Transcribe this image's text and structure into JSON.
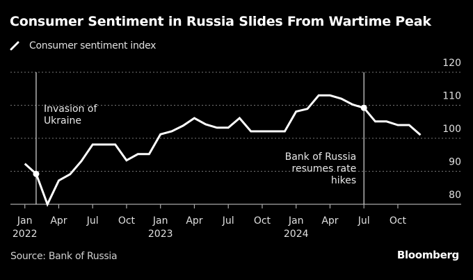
{
  "header": {
    "title": "Consumer Sentiment in Russia Slides From Wartime Peak",
    "legend_label": "Consumer sentiment index"
  },
  "footer": {
    "source": "Source: Bank of Russia",
    "brand": "Bloomberg"
  },
  "colors": {
    "background": "#000000",
    "line": "#ffffff",
    "grid": "#666666",
    "text": "#e0e0e0"
  },
  "chart_data": {
    "type": "line",
    "title": "Consumer Sentiment in Russia Slides From Wartime Peak",
    "xlabel": "",
    "ylabel": "",
    "ylim": [
      80,
      120
    ],
    "yticks": [
      80,
      90,
      100,
      110,
      120
    ],
    "y_axis_side": "right",
    "grid": true,
    "legend": "top-left",
    "x_start": "2022-01",
    "x_end_axis": "2025-06",
    "xticks": [
      {
        "month_index": 0,
        "label": "Jan",
        "year": "2022"
      },
      {
        "month_index": 3,
        "label": "Apr",
        "year": ""
      },
      {
        "month_index": 6,
        "label": "Jul",
        "year": ""
      },
      {
        "month_index": 9,
        "label": "Oct",
        "year": ""
      },
      {
        "month_index": 12,
        "label": "Jan",
        "year": "2023"
      },
      {
        "month_index": 15,
        "label": "Apr",
        "year": ""
      },
      {
        "month_index": 18,
        "label": "Jul",
        "year": ""
      },
      {
        "month_index": 21,
        "label": "Oct",
        "year": ""
      },
      {
        "month_index": 24,
        "label": "Jan",
        "year": "2024"
      },
      {
        "month_index": 27,
        "label": "Apr",
        "year": ""
      },
      {
        "month_index": 30,
        "label": "Jul",
        "year": ""
      },
      {
        "month_index": 33,
        "label": "Oct",
        "year": ""
      }
    ],
    "series": [
      {
        "name": "Consumer sentiment index",
        "x": [
          "2022-01",
          "2022-02",
          "2022-03",
          "2022-04",
          "2022-05",
          "2022-06",
          "2022-07",
          "2022-08",
          "2022-09",
          "2022-10",
          "2022-11",
          "2022-12",
          "2023-01",
          "2023-02",
          "2023-03",
          "2023-04",
          "2023-05",
          "2023-06",
          "2023-07",
          "2023-08",
          "2023-09",
          "2023-10",
          "2023-11",
          "2023-12",
          "2024-01",
          "2024-02",
          "2024-03",
          "2024-04",
          "2024-05",
          "2024-06",
          "2024-07",
          "2024-08",
          "2024-09",
          "2024-10",
          "2024-11",
          "2024-12"
        ],
        "values": [
          92.3,
          89.2,
          80.0,
          87.2,
          89.1,
          93.1,
          98.1,
          98.1,
          98.1,
          93.3,
          95.2,
          95.2,
          101.2,
          102.1,
          103.8,
          106.1,
          104.2,
          103.2,
          103.2,
          106.1,
          102.1,
          102.1,
          102.1,
          102.1,
          108.1,
          108.9,
          113.0,
          113.0,
          112.0,
          110.2,
          109.2,
          105.1,
          105.1,
          104.0,
          104.0,
          101.0
        ]
      }
    ],
    "annotations": [
      {
        "month_index": 1,
        "lines": [
          "Invasion of",
          "Ukraine"
        ],
        "align": "left"
      },
      {
        "month_index": 30,
        "lines": [
          "Bank of Russia",
          "resumes rate",
          "hikes"
        ],
        "align": "right"
      }
    ]
  }
}
